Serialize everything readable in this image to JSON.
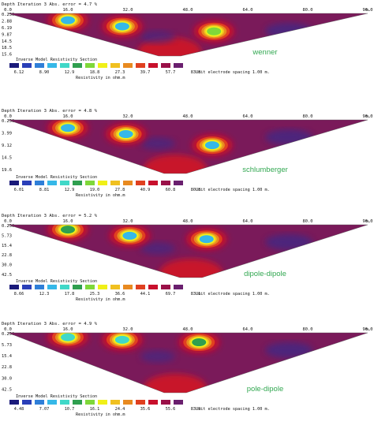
{
  "header_label": "Depth",
  "model_label": "Inverse Model Resistivity Section",
  "resistivity_label": "Resistivity in ohm.m",
  "spacing_label": "Unit electrode spacing 1.00 m.",
  "colors": [
    "#1a1a7a",
    "#2a3fb8",
    "#2f7fd8",
    "#35b8e8",
    "#40d8c8",
    "#2f9f4f",
    "#7fd83a",
    "#f0f018",
    "#f0c020",
    "#e88a20",
    "#e04020",
    "#c8102c",
    "#9a1048",
    "#6a1f6e"
  ],
  "chart_data": [
    {
      "type": "heatmap",
      "method": "wenner",
      "iteration_text": "Iteration 3 Abs. error = 4.7 %",
      "x_ticks": [
        "0.0",
        "16.0",
        "32.0",
        "48.0",
        "64.0",
        "80.0",
        "96.0"
      ],
      "x_unit": "m.",
      "depth_ticks": [
        "0.250",
        "2.88",
        "6.19",
        "9.87",
        "14.5",
        "18.5",
        "15.6"
      ],
      "legend_values": [
        "6.12",
        "8.90",
        "12.9",
        "18.8",
        "27.3",
        "39.7",
        "57.7",
        "83.8"
      ],
      "anomalies": [
        {
          "x": 16.0,
          "depth": 1.5,
          "level": 3
        },
        {
          "x": 30.5,
          "depth": 4.0,
          "level": 3
        },
        {
          "x": 55.0,
          "depth": 6.0,
          "level": 6
        }
      ]
    },
    {
      "type": "heatmap",
      "method": "schlumberger",
      "iteration_text": "Iteration 3 Abs. error = 4.8 %",
      "x_ticks": [
        "0.0",
        "16.0",
        "32.0",
        "48.0",
        "64.0",
        "80.0",
        "96.0"
      ],
      "x_unit": "m.",
      "depth_ticks": [
        "0.250",
        "3.99",
        "9.12",
        "14.5",
        "19.6"
      ],
      "legend_values": [
        "6.01",
        "8.81",
        "12.9",
        "19.0",
        "27.8",
        "40.9",
        "60.8",
        "80.8"
      ],
      "anomalies": [
        {
          "x": 16.0,
          "depth": 2.0,
          "level": 3
        },
        {
          "x": 31.5,
          "depth": 4.5,
          "level": 3
        },
        {
          "x": 54.5,
          "depth": 9.0,
          "level": 3
        }
      ]
    },
    {
      "type": "heatmap",
      "method": "dipole-dipole",
      "iteration_text": "Iteration 3 Abs. error = 5.2 %",
      "x_ticks": [
        "0.0",
        "16.0",
        "32.0",
        "48.0",
        "64.0",
        "80.0",
        "96.0"
      ],
      "x_unit": "m.",
      "depth_ticks": [
        "0.250",
        "5.73",
        "15.4",
        "22.8",
        "30.0",
        "42.5"
      ],
      "legend_values": [
        "8.66",
        "12.3",
        "17.8",
        "25.3",
        "36.6",
        "44.1",
        "69.7",
        "83.1"
      ],
      "anomalies": [
        {
          "x": 16.0,
          "depth": 1.5,
          "level": 5
        },
        {
          "x": 32.5,
          "depth": 7.0,
          "level": 3
        },
        {
          "x": 53.0,
          "depth": 10.0,
          "level": 3
        }
      ]
    },
    {
      "type": "heatmap",
      "method": "pole-dipole",
      "iteration_text": "Iteration 3 Abs. error = 4.9 %",
      "x_ticks": [
        "0.0",
        "16.0",
        "32.0",
        "48.0",
        "64.0",
        "80.0",
        "96.0"
      ],
      "x_unit": "m.",
      "depth_ticks": [
        "0.250",
        "5.73",
        "15.4",
        "22.8",
        "30.0",
        "42.5"
      ],
      "legend_values": [
        "4.48",
        "7.07",
        "10.7",
        "16.1",
        "24.4",
        "35.6",
        "55.6",
        "83.9"
      ],
      "anomalies": [
        {
          "x": 16.0,
          "depth": 1.0,
          "level": 4
        },
        {
          "x": 30.5,
          "depth": 3.0,
          "level": 4
        },
        {
          "x": 51.0,
          "depth": 5.0,
          "level": 5
        }
      ]
    }
  ]
}
